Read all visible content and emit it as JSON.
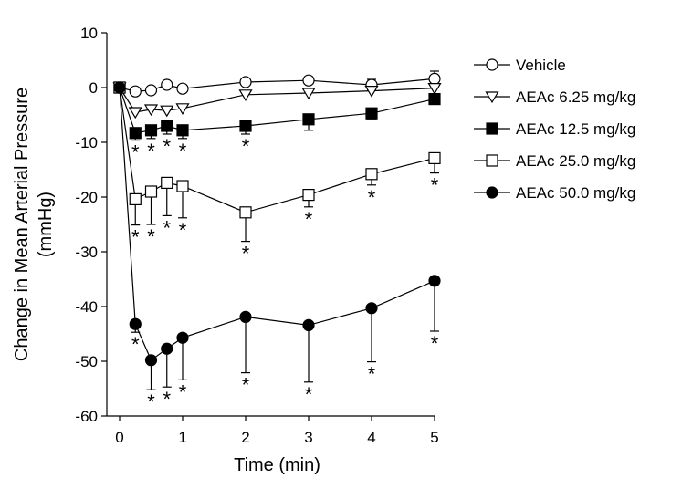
{
  "chart_data": {
    "type": "line",
    "xlabel": "Time (min)",
    "ylabel": "Change in Mean Arterial Pressure (mmHg)",
    "ylabel_lines": [
      "Change in Mean Arterial Pressure",
      "(mmHg)"
    ],
    "xlim": [
      0,
      5
    ],
    "ylim": [
      -60,
      10
    ],
    "xticks": [
      0,
      1,
      2,
      3,
      4,
      5
    ],
    "yticks": [
      10,
      0,
      -10,
      -20,
      -30,
      -40,
      -50,
      -60
    ],
    "x": [
      0,
      0.25,
      0.5,
      0.75,
      1,
      2,
      3,
      4,
      5
    ],
    "grid": false,
    "legend_position": "right",
    "series": [
      {
        "name": "Vehicle",
        "marker": "circle-open",
        "values": [
          0,
          -0.7,
          -0.5,
          0.5,
          -0.2,
          1.0,
          1.3,
          0.5,
          1.6
        ],
        "err": [
          0,
          0,
          0,
          0,
          0,
          0,
          0,
          1.0,
          1.4
        ],
        "sig": []
      },
      {
        "name": "AEAc 6.25 mg/kg",
        "marker": "triangle-down-open",
        "values": [
          0,
          -4.5,
          -4.0,
          -4.2,
          -3.8,
          -1.3,
          -1.0,
          -0.6,
          -0.1
        ],
        "err": [
          0,
          0,
          0,
          0,
          0,
          0,
          0,
          0,
          0
        ],
        "sig": []
      },
      {
        "name": "AEAc 12.5 mg/kg",
        "marker": "square-filled",
        "values": [
          0,
          -8.3,
          -7.8,
          -7.0,
          -7.8,
          -7.0,
          -5.8,
          -4.7,
          -2.1
        ],
        "err": [
          0,
          1.3,
          1.5,
          1.5,
          1.5,
          1.5,
          2.0,
          1.0,
          0
        ],
        "sig": [
          1,
          2,
          3,
          4,
          5
        ]
      },
      {
        "name": "AEAc 25.0 mg/kg",
        "marker": "square-open",
        "values": [
          0,
          -20.4,
          -19.0,
          -17.4,
          -18.0,
          -22.8,
          -19.6,
          -15.8,
          -12.9
        ],
        "err": [
          0,
          4.7,
          6.0,
          6.0,
          5.8,
          5.3,
          2.2,
          2.0,
          2.7
        ],
        "sig": [
          1,
          2,
          3,
          4,
          5,
          6,
          7,
          8
        ]
      },
      {
        "name": "AEAc 50.0 mg/kg",
        "marker": "circle-filled",
        "values": [
          0,
          -43.2,
          -49.8,
          -47.7,
          -45.7,
          -41.9,
          -43.4,
          -40.3,
          -35.3
        ],
        "err": [
          0,
          1.5,
          5.4,
          7.0,
          7.7,
          10.2,
          10.4,
          9.8,
          9.2
        ],
        "sig": [
          1,
          2,
          3,
          4,
          5,
          6,
          7,
          8
        ]
      }
    ],
    "sig_mark": "*"
  }
}
